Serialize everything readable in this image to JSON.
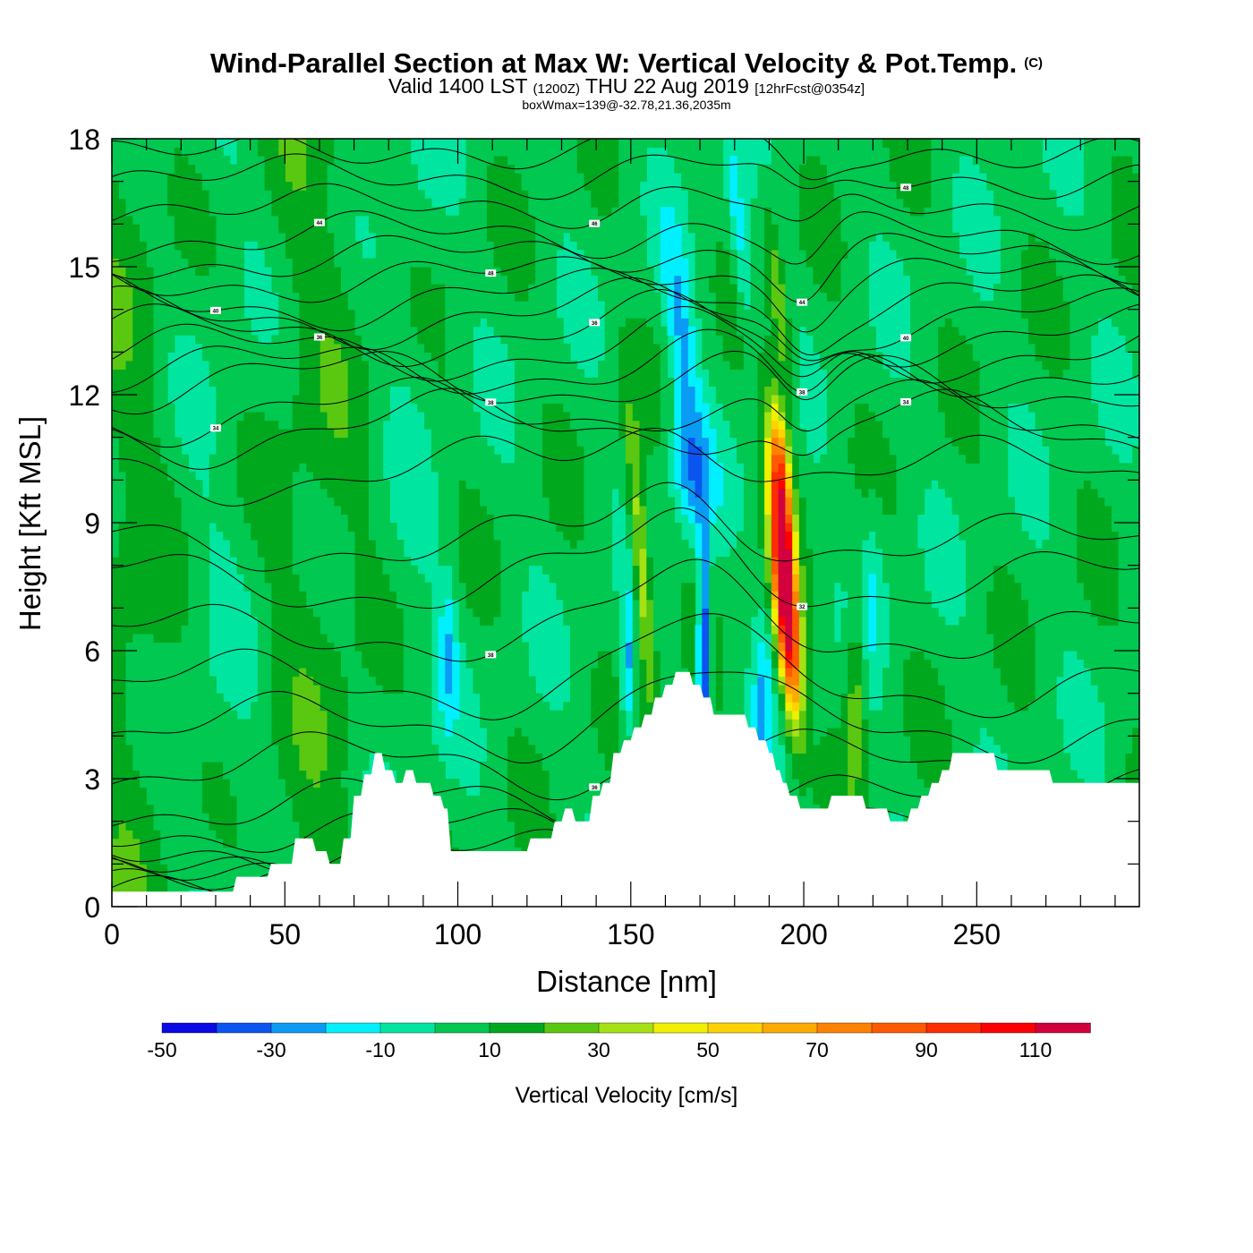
{
  "chart_data": {
    "type": "heatmap",
    "title": "Wind-Parallel Section at Max W: Vertical Velocity & Pot.Temp.",
    "title_mark": "(C)",
    "subtitle": {
      "valid": "Valid 1400 LST",
      "utc": "(1200Z)",
      "date": "THU 22 Aug 2019",
      "forecast": "[12hrFcst@0354z]"
    },
    "box_info": "boxWmax=139@-32.78,21.36,2035m",
    "xlabel": "Distance [nm]",
    "ylabel": "Height [Kft MSL]",
    "xlim": [
      0,
      297
    ],
    "ylim": [
      0,
      18
    ],
    "x_ticks": [
      0,
      50,
      100,
      150,
      200,
      250
    ],
    "y_ticks": [
      0,
      3,
      6,
      9,
      12,
      15,
      18
    ],
    "colorbar": {
      "label": "Vertical Velocity [cm/s]",
      "levels": [
        -50,
        -40,
        -30,
        -20,
        -10,
        0,
        10,
        20,
        30,
        40,
        50,
        60,
        70,
        80,
        90,
        100,
        110,
        120
      ],
      "tick_labels": [
        "-50",
        "-30",
        "-10",
        "10",
        "30",
        "50",
        "70",
        "90",
        "110"
      ],
      "colors": [
        "#0a0ae6",
        "#0a55f0",
        "#0a9bf5",
        "#00f0ff",
        "#00e6a0",
        "#00c850",
        "#00a81e",
        "#5ac810",
        "#a6e114",
        "#f0f000",
        "#ffd200",
        "#ffaa00",
        "#ff8200",
        "#ff5a00",
        "#ff2d00",
        "#ff0000",
        "#d2003c"
      ]
    },
    "terrain": {
      "x": [
        0,
        35,
        36,
        45,
        46,
        52,
        53,
        58,
        59,
        62,
        63,
        66,
        67,
        69,
        70,
        72,
        73,
        75,
        76,
        78,
        79,
        81,
        82,
        84,
        85,
        87,
        88,
        92,
        93,
        95,
        96,
        97,
        98,
        105,
        110,
        115,
        118,
        120,
        121,
        125,
        126,
        127,
        128,
        130,
        131,
        133,
        134,
        138,
        139,
        141,
        142,
        144,
        145,
        147,
        148,
        150,
        151,
        153,
        154,
        156,
        157,
        159,
        160,
        162,
        163,
        167,
        168,
        170,
        171,
        173,
        174,
        183,
        184,
        186,
        187,
        189,
        190,
        191,
        192,
        193,
        194,
        195,
        196,
        198,
        199,
        207,
        208,
        217,
        218,
        224,
        225,
        230,
        231,
        233,
        234,
        236,
        237,
        239,
        240,
        242,
        243,
        245,
        246,
        255,
        256,
        260,
        261,
        271,
        272,
        297
      ],
      "y": [
        0.35,
        0.35,
        0.7,
        0.7,
        1.0,
        1.0,
        1.6,
        1.6,
        1.3,
        1.3,
        1.0,
        1.0,
        1.6,
        1.6,
        2.6,
        2.6,
        3.1,
        3.1,
        3.6,
        3.6,
        3.2,
        3.2,
        2.9,
        2.9,
        3.2,
        3.2,
        2.9,
        2.9,
        2.6,
        2.6,
        2.3,
        2.3,
        1.3,
        1.3,
        1.3,
        1.3,
        1.3,
        1.3,
        1.6,
        1.6,
        1.6,
        1.6,
        2.0,
        2.0,
        2.3,
        2.3,
        2.0,
        2.0,
        2.6,
        2.6,
        2.9,
        2.9,
        3.6,
        3.6,
        3.9,
        3.9,
        4.2,
        4.2,
        4.5,
        4.5,
        4.9,
        4.9,
        5.2,
        5.2,
        5.5,
        5.5,
        5.2,
        5.2,
        4.9,
        4.9,
        4.5,
        4.5,
        4.2,
        4.2,
        3.9,
        3.9,
        3.6,
        3.6,
        3.2,
        3.2,
        2.9,
        2.9,
        2.6,
        2.6,
        2.3,
        2.3,
        2.6,
        2.6,
        2.3,
        2.3,
        2.0,
        2.0,
        2.3,
        2.3,
        2.6,
        2.6,
        2.9,
        2.9,
        3.2,
        3.2,
        3.6,
        3.6,
        3.6,
        3.6,
        3.2,
        3.2,
        3.2,
        3.2,
        2.9,
        2.9
      ]
    },
    "w_features": [
      {
        "x": 195,
        "z": 7.0,
        "value": 139
      },
      {
        "x": 171,
        "z": 5.5,
        "value": -45
      },
      {
        "x": 149,
        "z": 6.5,
        "value": -30
      },
      {
        "x": 153,
        "z": 7.5,
        "value": 35
      }
    ],
    "theta_contours": [
      {
        "z0": 0.45,
        "amp": 0.05,
        "label": ""
      },
      {
        "z0": 0.6,
        "amp": 0.05,
        "label": ""
      },
      {
        "z0": 0.8,
        "amp": 0.1,
        "label": ""
      },
      {
        "z0": 1.0,
        "amp": 0.15,
        "label": ""
      },
      {
        "z0": 1.3,
        "amp": 0.3,
        "label": ""
      },
      {
        "z0": 1.8,
        "amp": 0.4,
        "label": ""
      },
      {
        "z0": 2.4,
        "amp": 0.5,
        "label": ""
      },
      {
        "z0": 3.3,
        "amp": 0.6,
        "label": "36"
      },
      {
        "z0": 4.2,
        "amp": 0.6,
        "label": ""
      },
      {
        "z0": 5.2,
        "amp": 0.6,
        "label": ""
      },
      {
        "z0": 6.4,
        "amp": 0.5,
        "label": "38"
      },
      {
        "z0": 7.6,
        "amp": 0.6,
        "label": "32"
      },
      {
        "z0": 8.5,
        "amp": 0.5,
        "label": ""
      },
      {
        "z0": 10.2,
        "amp": 0.6,
        "label": ""
      },
      {
        "z0": 11.2,
        "amp": 0.7,
        "label": "34"
      },
      {
        "z0": 11.6,
        "amp": 0.6,
        "label": "34"
      },
      {
        "z0": 12.3,
        "amp": 0.6,
        "label": "38"
      },
      {
        "z0": 12.6,
        "amp": 0.5,
        "label": "38"
      },
      {
        "z0": 13.0,
        "amp": 0.5,
        "label": "36"
      },
      {
        "z0": 13.4,
        "amp": 0.5,
        "label": "36"
      },
      {
        "z0": 13.8,
        "amp": 0.5,
        "label": "40"
      },
      {
        "z0": 14.2,
        "amp": 0.5,
        "label": "40"
      },
      {
        "z0": 14.7,
        "amp": 0.4,
        "label": "48"
      },
      {
        "z0": 15.2,
        "amp": 0.4,
        "label": "44"
      },
      {
        "z0": 15.7,
        "amp": 0.4,
        "label": "44"
      },
      {
        "z0": 16.4,
        "amp": 0.3,
        "label": "46"
      },
      {
        "z0": 17.1,
        "amp": 0.3,
        "label": "48"
      },
      {
        "z0": 17.7,
        "amp": 0.2,
        "label": ""
      }
    ]
  }
}
